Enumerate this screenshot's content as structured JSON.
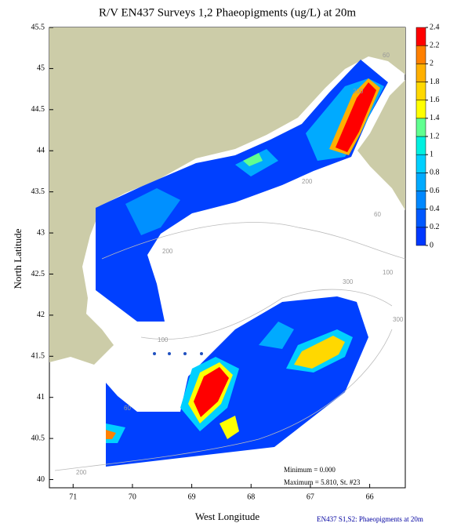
{
  "chart_data": {
    "type": "contour",
    "title": "R/V EN437 Surveys 1,2 Phaeopigments (ug/L) at 20m",
    "x_label": "West Longitude",
    "y_label": "North Latitude",
    "xlim": [
      71.4,
      65.4
    ],
    "ylim": [
      39.9,
      45.5
    ],
    "xticks": [
      71,
      70,
      69,
      68,
      67,
      66
    ],
    "yticks": [
      40,
      40.5,
      41,
      41.5,
      42,
      42.5,
      43,
      43.5,
      44,
      44.5,
      45,
      45.5
    ],
    "colorbar": {
      "lim": [
        0,
        2.4
      ],
      "ticks": [
        0,
        0.2,
        0.4,
        0.6,
        0.8,
        1,
        1.2,
        1.4,
        1.6,
        1.8,
        2,
        2.2,
        2.4
      ],
      "colors": [
        "#0038ff",
        "#0058ff",
        "#0088ff",
        "#00aaff",
        "#00d0ff",
        "#00f0e0",
        "#60ff90",
        "#ffff00",
        "#ffd800",
        "#ffb000",
        "#ff8000",
        "#ff0000"
      ]
    },
    "annotations": [
      "Minimum = 0.000",
      "Maximum = 5.810, St. #23"
    ],
    "footer": "EN437  S1,S2: Phaeopigments at 20m",
    "contour_labels": [
      "60",
      "200",
      "200",
      "60",
      "100",
      "200",
      "300",
      "100",
      "300",
      "60",
      "200"
    ]
  }
}
